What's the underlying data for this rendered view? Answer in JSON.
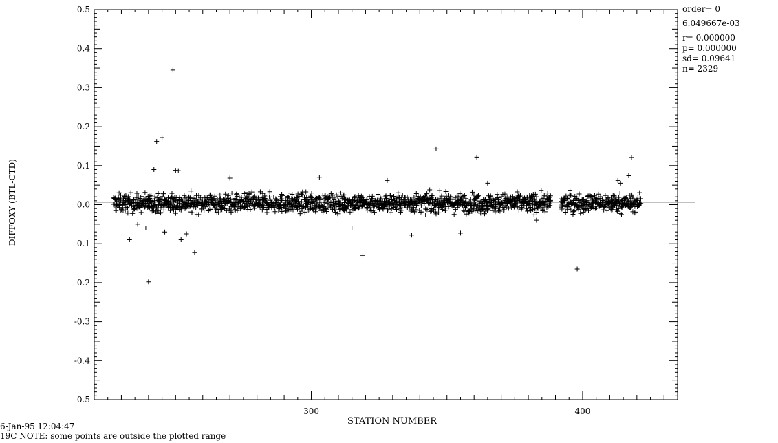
{
  "chart_data": {
    "type": "scatter",
    "xlabel": "STATION NUMBER",
    "ylabel": "DIFFOXY (BTL-CTD)",
    "xlim": [
      220,
      435
    ],
    "ylim": [
      -0.5,
      0.5
    ],
    "x_ticks": [
      300,
      400
    ],
    "y_ticks": [
      "0.5",
      "0.4",
      "0.3",
      "0.2",
      "0.1",
      "0.0",
      "-0.1",
      "-0.2",
      "-0.3",
      "-0.4",
      "-0.5"
    ],
    "y_tick_values": [
      0.5,
      0.4,
      0.3,
      0.2,
      0.1,
      0.0,
      -0.1,
      -0.2,
      -0.3,
      -0.4,
      -0.5
    ],
    "fit_line_y": 0.006049667,
    "grid": false,
    "marker": "+",
    "station_range": [
      227,
      421
    ],
    "outliers": [
      {
        "x": 249,
        "y": 0.345
      },
      {
        "x": 245,
        "y": 0.172
      },
      {
        "x": 243,
        "y": 0.162
      },
      {
        "x": 250,
        "y": 0.088
      },
      {
        "x": 251,
        "y": 0.087
      },
      {
        "x": 346,
        "y": 0.143
      },
      {
        "x": 361,
        "y": 0.122
      },
      {
        "x": 418,
        "y": 0.121
      },
      {
        "x": 242,
        "y": 0.09
      },
      {
        "x": 233,
        "y": -0.09
      },
      {
        "x": 240,
        "y": -0.198
      },
      {
        "x": 257,
        "y": -0.123
      },
      {
        "x": 319,
        "y": -0.13
      },
      {
        "x": 398,
        "y": -0.165
      },
      {
        "x": 252,
        "y": -0.09
      },
      {
        "x": 355,
        "y": -0.073
      },
      {
        "x": 337,
        "y": -0.078
      },
      {
        "x": 303,
        "y": 0.07
      },
      {
        "x": 270,
        "y": 0.068
      },
      {
        "x": 315,
        "y": -0.06
      },
      {
        "x": 246,
        "y": -0.07
      },
      {
        "x": 254,
        "y": -0.075
      },
      {
        "x": 413,
        "y": 0.062
      },
      {
        "x": 414,
        "y": 0.055
      },
      {
        "x": 417,
        "y": 0.074
      },
      {
        "x": 365,
        "y": 0.055
      },
      {
        "x": 383,
        "y": -0.04
      },
      {
        "x": 328,
        "y": 0.062
      },
      {
        "x": 239,
        "y": -0.06
      },
      {
        "x": 236,
        "y": -0.05
      }
    ],
    "gap": [
      388,
      392
    ]
  },
  "stats": {
    "order": "order= 0",
    "intercept": "6.049667e-03",
    "r": "r= 0.000000",
    "p": "p= 0.000000",
    "sd": "sd= 0.09641",
    "n": "n= 2329"
  },
  "footer": {
    "timestamp": "6-Jan-95 12:04:47",
    "note": "19C   NOTE: some points are outside the plotted range"
  },
  "colors": {
    "axis": "#000000",
    "marker": "#000000",
    "fit_line": "#9a9a9a"
  }
}
